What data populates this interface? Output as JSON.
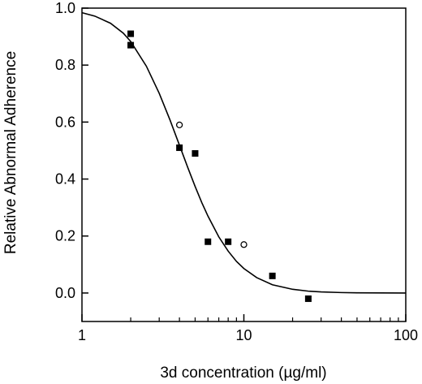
{
  "chart_data": {
    "type": "scatter",
    "title": "",
    "xlabel": "3d concentration (µg/ml)",
    "ylabel": "Relative Abnormal Adherence",
    "x_scale": "log",
    "xlim": [
      1,
      100
    ],
    "ylim": [
      -0.1,
      1.0
    ],
    "x_ticks": [
      1,
      10,
      100
    ],
    "x_tick_labels": [
      "1",
      "10",
      "100"
    ],
    "y_ticks": [
      0.0,
      0.2,
      0.4,
      0.6,
      0.8,
      1.0
    ],
    "y_tick_labels": [
      "0.0",
      "0.2",
      "0.4",
      "0.6",
      "0.8",
      "1.0"
    ],
    "grid": false,
    "series": [
      {
        "marker": "filled-square",
        "color": "#000000",
        "x": [
          2,
          2,
          4,
          5,
          6,
          8,
          15,
          25
        ],
        "y": [
          0.91,
          0.87,
          0.51,
          0.49,
          0.18,
          0.18,
          0.06,
          -0.02
        ]
      },
      {
        "marker": "open-circle",
        "color": "#000000",
        "x": [
          4,
          10
        ],
        "y": [
          0.59,
          0.17
        ]
      }
    ],
    "fit_curve": {
      "type": "line",
      "color": "#000000",
      "x": [
        1,
        1.2,
        1.5,
        1.8,
        2,
        2.5,
        3,
        3.5,
        4,
        4.5,
        5,
        5.5,
        6,
        7,
        8,
        9,
        10,
        12,
        15,
        20,
        25,
        30,
        40,
        50,
        70,
        100
      ],
      "y": [
        0.984,
        0.972,
        0.947,
        0.912,
        0.883,
        0.796,
        0.701,
        0.607,
        0.519,
        0.441,
        0.374,
        0.317,
        0.27,
        0.197,
        0.147,
        0.111,
        0.086,
        0.054,
        0.029,
        0.013,
        0.0065,
        0.0037,
        0.0015,
        0.0007,
        0.0002,
        0.0
      ]
    }
  }
}
